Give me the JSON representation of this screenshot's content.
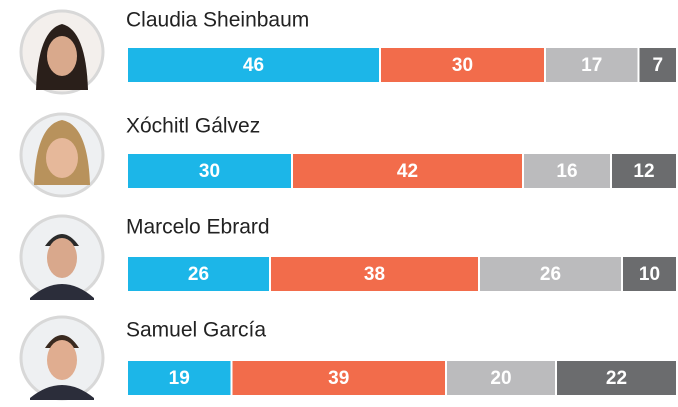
{
  "chart_data": {
    "type": "stacked-bar",
    "orientation": "horizontal",
    "categories": [
      "Claudia Sheinbaum",
      "Xóchitl Gálvez",
      "Marcelo Ebrard",
      "Samuel García"
    ],
    "xlim": [
      0,
      100
    ],
    "series": [
      {
        "color": "#1cb6e8",
        "values": [
          46,
          30,
          26,
          19
        ]
      },
      {
        "color": "#f26c4b",
        "values": [
          30,
          42,
          38,
          39
        ]
      },
      {
        "color": "#bbbbbd",
        "values": [
          17,
          16,
          26,
          20
        ]
      },
      {
        "color": "#6b6c6e",
        "values": [
          7,
          12,
          10,
          22
        ]
      }
    ]
  }
}
